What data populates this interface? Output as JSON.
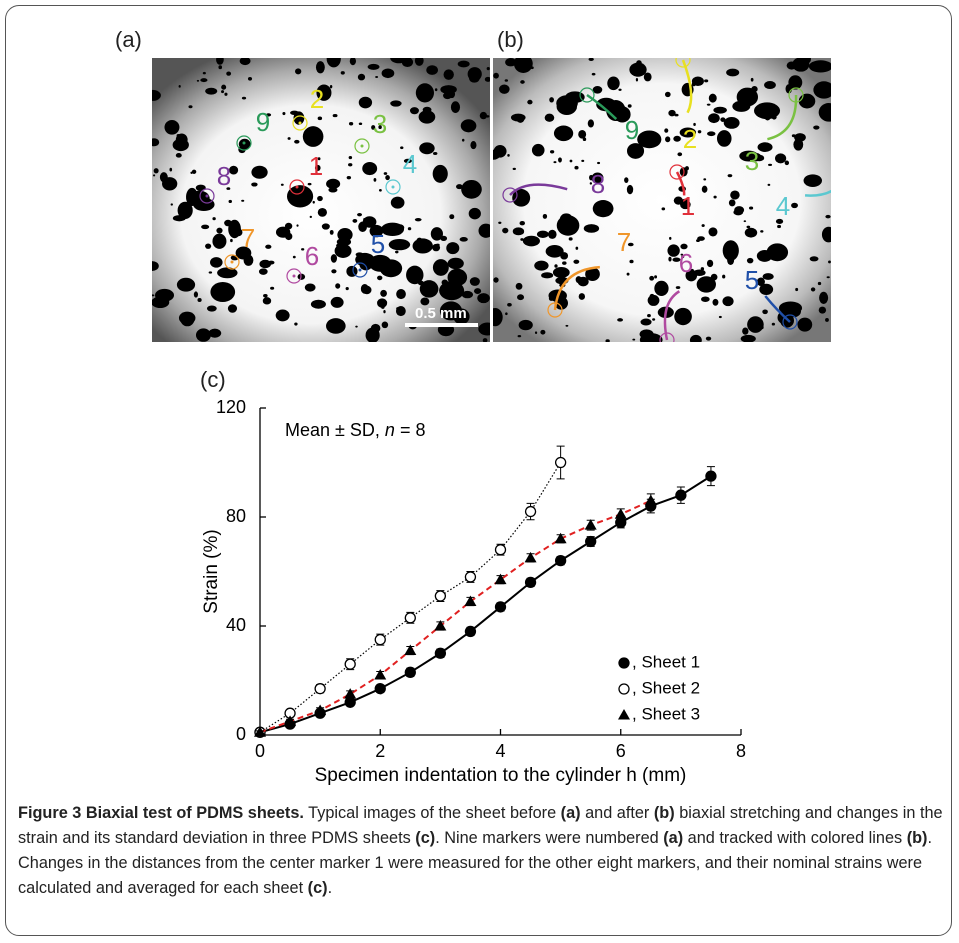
{
  "images": [
    {
      "label": "(a)",
      "scalebar": "0.5 mm",
      "markers": [
        {
          "text": "1",
          "color": "#e0303a"
        },
        {
          "text": "2",
          "color": "#e8e020"
        },
        {
          "text": "3",
          "color": "#7ac142"
        },
        {
          "text": "4",
          "color": "#5bc8d0"
        },
        {
          "text": "5",
          "color": "#1f4fa8"
        },
        {
          "text": "6",
          "color": "#b04aa0"
        },
        {
          "text": "7",
          "color": "#f0962a"
        },
        {
          "text": "8",
          "color": "#7a3a9a"
        },
        {
          "text": "9",
          "color": "#2a9a5a"
        }
      ]
    },
    {
      "label": "(b)",
      "markers": [
        {
          "text": "1",
          "color": "#e0303a"
        },
        {
          "text": "2",
          "color": "#e8e020"
        },
        {
          "text": "3",
          "color": "#7ac142"
        },
        {
          "text": "4",
          "color": "#5bc8d0"
        },
        {
          "text": "5",
          "color": "#1f4fa8"
        },
        {
          "text": "6",
          "color": "#b04aa0"
        },
        {
          "text": "7",
          "color": "#f0962a"
        },
        {
          "text": "8",
          "color": "#7a3a9a"
        },
        {
          "text": "9",
          "color": "#2a9a5a"
        }
      ]
    }
  ],
  "chart_data": {
    "type": "line",
    "panel_label": "(c)",
    "annotation": [
      "Mean ± SD, ",
      "n",
      " = 8"
    ],
    "x_label": "Specimen indentation to the cylinder h (mm)",
    "y_label": "Strain (%)",
    "xlim": [
      0,
      8
    ],
    "xticks": [
      0,
      2,
      4,
      6,
      8
    ],
    "ylim": [
      0,
      120
    ],
    "yticks": [
      0,
      40,
      80,
      120
    ],
    "series": [
      {
        "name": ", Sheet 1",
        "color": "#000000",
        "marker": "filled-circle",
        "linestyle": "solid",
        "x": [
          0,
          0.5,
          1,
          1.5,
          2,
          2.5,
          3,
          3.5,
          4,
          4.5,
          5,
          5.5,
          6,
          6.5,
          7,
          7.5
        ],
        "values": [
          1,
          4,
          8,
          12,
          17,
          23,
          30,
          38,
          47,
          56,
          64,
          71,
          78,
          84,
          88,
          95
        ],
        "errors": [
          0.5,
          0.8,
          1,
          1.2,
          1.3,
          1.5,
          1.5,
          1.5,
          1.5,
          1.5,
          1.5,
          1.8,
          2,
          2.5,
          3,
          3.5
        ]
      },
      {
        "name": ", Sheet 2",
        "color": "#000000",
        "marker": "open-circle",
        "linestyle": "dotted",
        "x": [
          0,
          0.5,
          1,
          1.5,
          2,
          2.5,
          3,
          3.5,
          4,
          4.5,
          5
        ],
        "values": [
          1,
          8,
          17,
          26,
          35,
          43,
          51,
          58,
          68,
          82,
          100
        ],
        "errors": [
          0.5,
          1,
          1.5,
          2,
          2,
          2,
          2,
          2,
          2,
          3,
          6
        ]
      },
      {
        "name": ", Sheet 3",
        "color": "#e02020",
        "marker": "triangle",
        "linestyle": "dashed",
        "x": [
          0,
          0.5,
          1,
          1.5,
          2,
          2.5,
          3,
          3.5,
          4,
          4.5,
          5,
          5.5,
          6,
          6.5
        ],
        "values": [
          1,
          5,
          9,
          15,
          22,
          31,
          40,
          49,
          57,
          65,
          72,
          77,
          81,
          86
        ],
        "errors": [
          0.5,
          0.8,
          1,
          1.2,
          1.3,
          1.5,
          1.5,
          1.5,
          1.5,
          1.5,
          1.5,
          1.8,
          2,
          2.5
        ]
      }
    ]
  },
  "caption": {
    "title": "Figure 3 Biaxial test of PDMS sheets.",
    "parts": [
      " Typical images of the sheet before ",
      "(a)",
      " and after ",
      "(b)",
      " biaxial stretching and changes in the strain and its standard deviation in three PDMS sheets ",
      "(c)",
      ". Nine markers were numbered ",
      "(a)",
      " and tracked with colored lines ",
      "(b)",
      ". Changes in the distances from the center marker 1 were measured for the other eight markers, and their nominal strains were calculated and averaged for each sheet ",
      "(c)",
      "."
    ]
  }
}
